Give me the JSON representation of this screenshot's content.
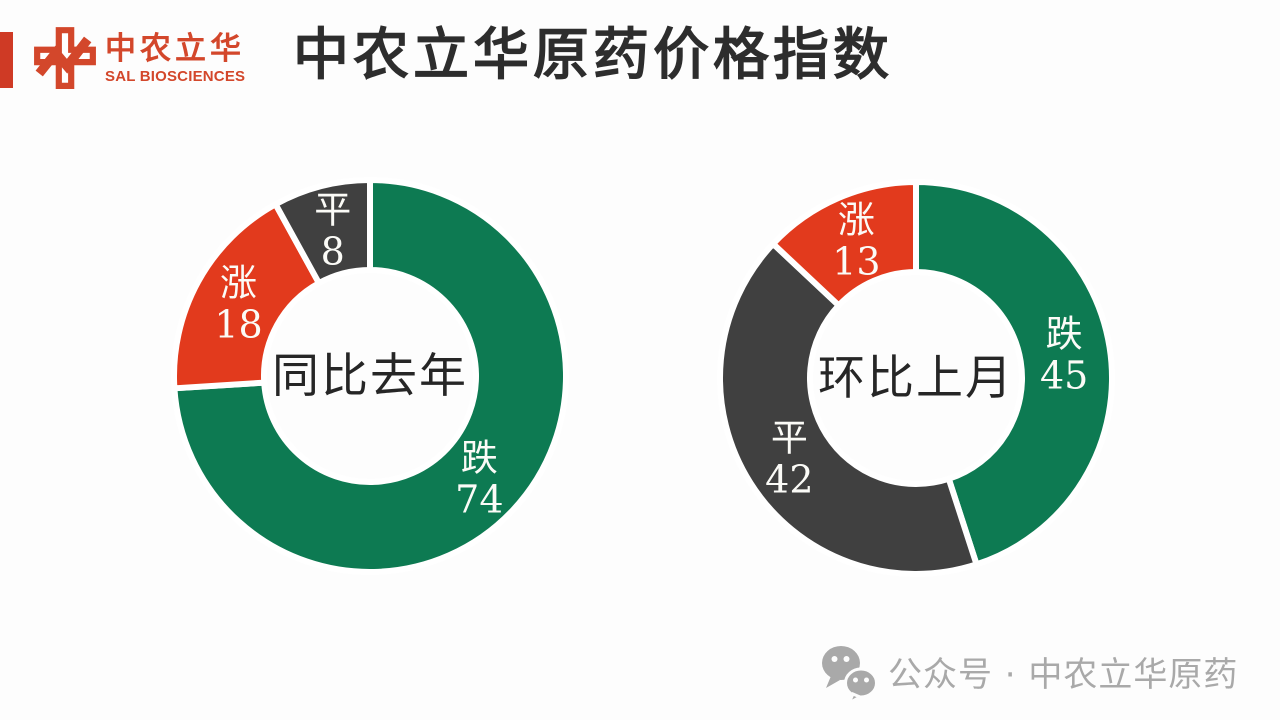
{
  "slide": {
    "background": "#fdfdfd"
  },
  "accent_bar": {
    "color": "#cf3a25"
  },
  "logo": {
    "cn": "中农立华",
    "en": "SAL BIOSCIENCES",
    "color": "#d3472b"
  },
  "title": {
    "text": "中农立华原药价格指数",
    "color": "#2d2d2d"
  },
  "chart_data": [
    {
      "type": "pie",
      "variant": "donut",
      "center_label": "同比去年",
      "start_angle_deg": 0,
      "direction": "clockwise",
      "label_position": "inside",
      "slice_label_color": "#fbfbf7",
      "center_label_color": "#262626",
      "slices": [
        {
          "label": "跌",
          "value": 74,
          "color": "#0d7a52"
        },
        {
          "label": "涨",
          "value": 18,
          "color": "#e23a1d"
        },
        {
          "label": "平",
          "value": 8,
          "color": "#404040"
        }
      ]
    },
    {
      "type": "pie",
      "variant": "donut",
      "center_label": "环比上月",
      "start_angle_deg": 0,
      "direction": "clockwise",
      "label_position": "inside",
      "slice_label_color": "#fbfbf7",
      "center_label_color": "#262626",
      "slices": [
        {
          "label": "跌",
          "value": 45,
          "color": "#0d7a52"
        },
        {
          "label": "平",
          "value": 42,
          "color": "#404040"
        },
        {
          "label": "涨",
          "value": 13,
          "color": "#e23a1d"
        }
      ]
    }
  ],
  "watermark": {
    "icon": "wechat-icon",
    "text": "公众号 · 中农立华原药",
    "color": "#a9a9a9"
  }
}
